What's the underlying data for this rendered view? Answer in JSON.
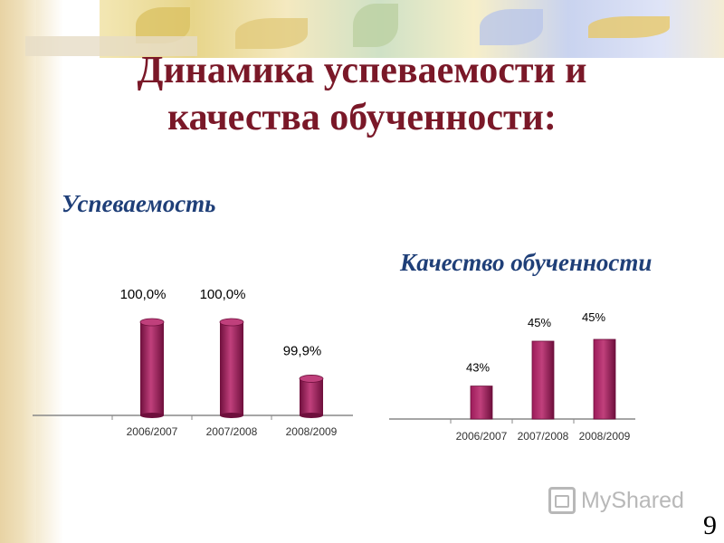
{
  "title_line1": "Динамика успеваемости  и",
  "title_line2": "качества обученности:",
  "watermark": "MyShared",
  "page_number": "9",
  "colors": {
    "title": "#7a1828",
    "subtitle": "#1f3f78",
    "bar": "#9c1b5a",
    "bar_dark": "#6e0f3c",
    "bar_light": "#c0407c"
  },
  "chart_data": [
    {
      "type": "bar",
      "title": "Успеваемость",
      "categories": [
        "",
        "2006/2007",
        "2007/2008",
        "2008/2009"
      ],
      "values": [
        null,
        100.0,
        100.0,
        99.9
      ],
      "value_labels": [
        "",
        "100,0%",
        "100,0%",
        "99,9%"
      ],
      "bar_shape": "cylinder"
    },
    {
      "type": "bar",
      "title": "Качество обученности",
      "categories": [
        "",
        "2006/2007",
        "2007/2008",
        "2008/2009"
      ],
      "values": [
        null,
        43,
        45,
        45
      ],
      "value_labels": [
        "",
        "43%",
        "45%",
        "45%"
      ],
      "bar_shape": "box"
    }
  ]
}
